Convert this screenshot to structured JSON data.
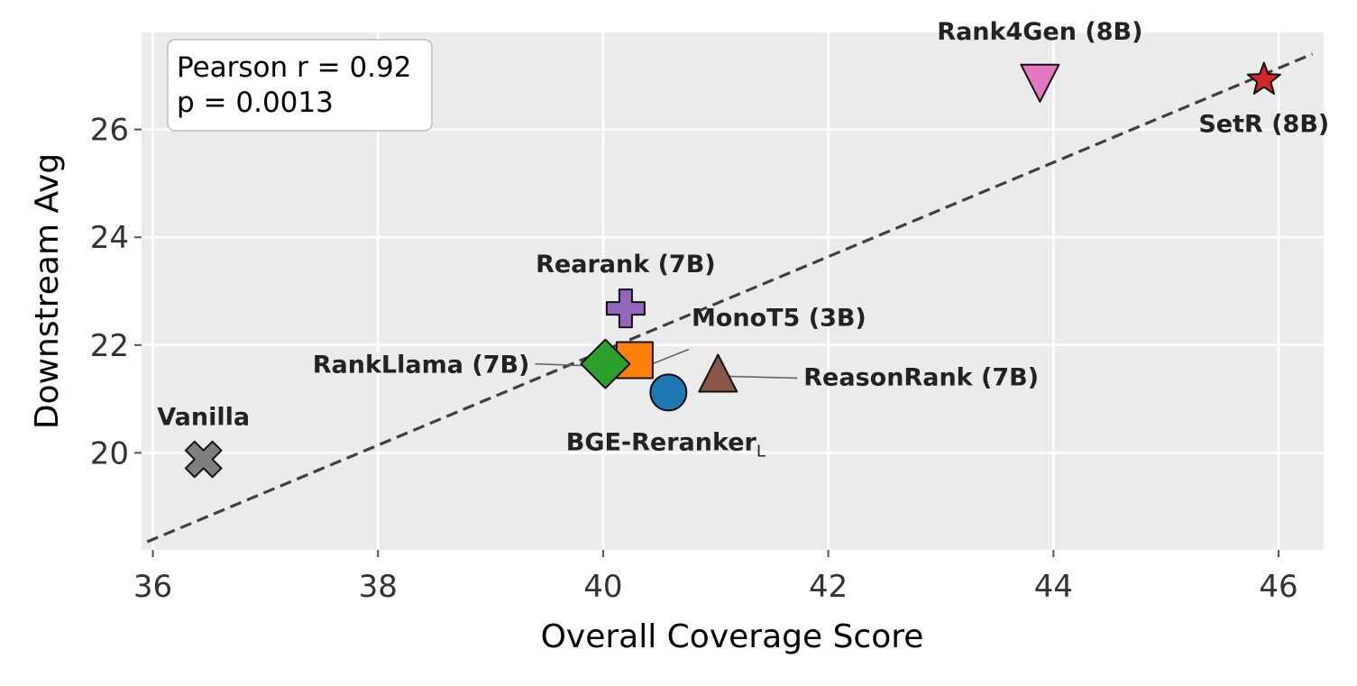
{
  "chart_data": {
    "type": "scatter",
    "xlabel": "Overall Coverage Score",
    "ylabel": "Downstream Avg",
    "xlim": [
      35.9,
      46.4
    ],
    "ylim": [
      18.2,
      27.8
    ],
    "xticks": [
      "36",
      "38",
      "40",
      "42",
      "44",
      "46"
    ],
    "yticks": [
      "20",
      "22",
      "24",
      "26"
    ],
    "grid": true,
    "stats_box": {
      "line1": "Pearson r = 0.92",
      "line2": "p = 0.0013",
      "placement": "top-left"
    },
    "trend_line": {
      "x": [
        35.95,
        46.3
      ],
      "y": [
        18.35,
        27.4
      ],
      "style": "dashed",
      "color": "#404040"
    },
    "points": [
      {
        "name": "Vanilla",
        "x": 36.45,
        "y": 19.88,
        "marker": "x-cross",
        "color": "#7f7f7f",
        "label": "Vanilla"
      },
      {
        "name": "BGE-Reranker",
        "x": 40.58,
        "y": 21.12,
        "marker": "circle",
        "color": "#1f77b4",
        "label": "BGE-Reranker",
        "label_sub": "L"
      },
      {
        "name": "MonoT5 (3B)",
        "x": 40.28,
        "y": 21.72,
        "marker": "square",
        "color": "#ff7f0e",
        "label": "MonoT5 (3B)"
      },
      {
        "name": "RankLlama (7B)",
        "x": 40.02,
        "y": 21.65,
        "marker": "diamond",
        "color": "#2ca02c",
        "label": "RankLlama (7B)"
      },
      {
        "name": "Rearank (7B)",
        "x": 40.2,
        "y": 22.68,
        "marker": "plus",
        "color": "#9467bd",
        "label": "Rearank (7B)"
      },
      {
        "name": "ReasonRank (7B)",
        "x": 41.02,
        "y": 21.42,
        "marker": "triangle-up",
        "color": "#8c564b",
        "label": "ReasonRank (7B)"
      },
      {
        "name": "Rank4Gen (8B)",
        "x": 43.88,
        "y": 26.9,
        "marker": "triangle-down",
        "color": "#e377c2",
        "label": "Rank4Gen (8B)"
      },
      {
        "name": "SetR (8B)",
        "x": 45.87,
        "y": 26.92,
        "marker": "star",
        "color": "#d62728",
        "label": "SetR (8B)"
      }
    ]
  }
}
